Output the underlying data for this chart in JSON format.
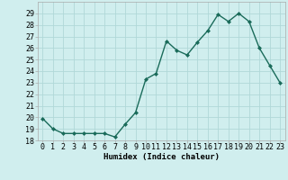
{
  "x": [
    0,
    1,
    2,
    3,
    4,
    5,
    6,
    7,
    8,
    9,
    10,
    11,
    12,
    13,
    14,
    15,
    16,
    17,
    18,
    19,
    20,
    21,
    22,
    23
  ],
  "y": [
    19.9,
    19.0,
    18.6,
    18.6,
    18.6,
    18.6,
    18.6,
    18.3,
    19.4,
    20.4,
    23.3,
    23.8,
    26.6,
    25.8,
    25.4,
    26.5,
    27.5,
    28.9,
    28.3,
    29.0,
    28.3,
    26.0,
    24.5,
    23.0
  ],
  "line_color": "#1a6b5a",
  "marker": "D",
  "markersize": 2.0,
  "bg_color": "#d0eeee",
  "grid_color": "#b0d8d8",
  "xlabel": "Humidex (Indice chaleur)",
  "ylim": [
    18,
    30
  ],
  "xlim": [
    -0.5,
    23.5
  ],
  "yticks": [
    18,
    19,
    20,
    21,
    22,
    23,
    24,
    25,
    26,
    27,
    28,
    29
  ],
  "xticks": [
    0,
    1,
    2,
    3,
    4,
    5,
    6,
    7,
    8,
    9,
    10,
    11,
    12,
    13,
    14,
    15,
    16,
    17,
    18,
    19,
    20,
    21,
    22,
    23
  ],
  "xlabel_fontsize": 6.5,
  "tick_fontsize": 6.0,
  "linewidth": 1.0
}
